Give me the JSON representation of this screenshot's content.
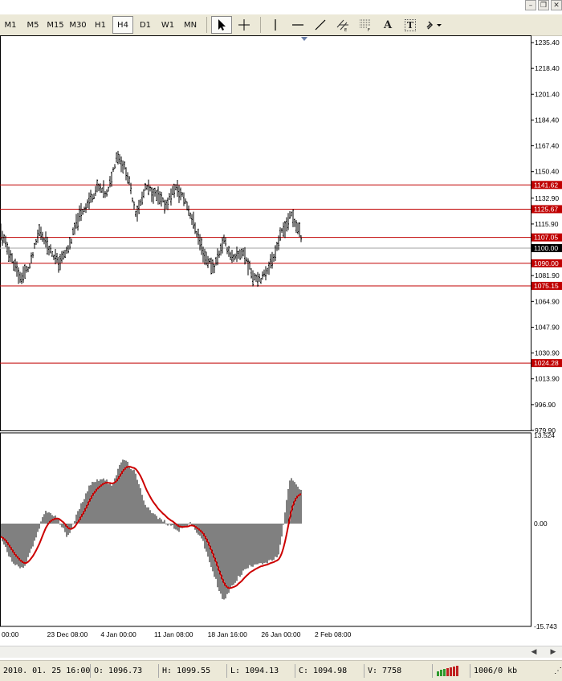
{
  "timeframes": [
    {
      "label": "M1",
      "active": false
    },
    {
      "label": "M5",
      "active": false
    },
    {
      "label": "M15",
      "active": false
    },
    {
      "label": "M30",
      "active": false
    },
    {
      "label": "H1",
      "active": false
    },
    {
      "label": "H4",
      "active": true
    },
    {
      "label": "D1",
      "active": false
    },
    {
      "label": "W1",
      "active": false
    },
    {
      "label": "MN",
      "active": false
    }
  ],
  "tools": [
    {
      "name": "cursor-icon",
      "active": true
    },
    {
      "name": "crosshair-icon",
      "active": false
    },
    {
      "name": "vertical-line-icon",
      "active": false
    },
    {
      "name": "horizontal-line-icon",
      "active": false
    },
    {
      "name": "trendline-icon",
      "active": false
    },
    {
      "name": "equidistant-channel-icon",
      "active": false
    },
    {
      "name": "fibonacci-icon",
      "active": false
    },
    {
      "name": "text-icon",
      "active": false
    },
    {
      "name": "text-label-icon",
      "active": false
    },
    {
      "name": "arrows-dropdown-icon",
      "active": false
    }
  ],
  "text_tool_label": "A",
  "text_label_tool_label": "T",
  "window_controls": {
    "minimize": "–",
    "restore": "❐",
    "close": "✕"
  },
  "colors": {
    "price_line": "#c00000",
    "macd_signal": "#cc0000",
    "bars": "#000000",
    "current_price": "#a0a0a0"
  },
  "chart_data": {
    "type": "line",
    "price_axis": {
      "ticks": [
        "1235.40",
        "1218.40",
        "1201.40",
        "1184.40",
        "1167.40",
        "1150.40",
        "1132.90",
        "1115.90",
        "1098.90",
        "1081.90",
        "1064.90",
        "1047.90",
        "1030.90",
        "1013.90",
        "996.90",
        "979.90"
      ],
      "range": [
        979.9,
        1237.0
      ]
    },
    "current_price": {
      "label": "1100.00",
      "value": 1100.0
    },
    "horizontal_levels": [
      {
        "label": "1141.62",
        "value": 1141.62
      },
      {
        "label": "1125.67",
        "value": 1125.67
      },
      {
        "label": "1107.05",
        "value": 1107.05
      },
      {
        "label": "1090.00",
        "value": 1090.0
      },
      {
        "label": "1075.15",
        "value": 1075.15
      },
      {
        "label": "1024.28",
        "value": 1024.28
      }
    ],
    "price_keypoints": [
      1110,
      1095,
      1080,
      1088,
      1112,
      1100,
      1090,
      1100,
      1120,
      1130,
      1140,
      1135,
      1162,
      1150,
      1122,
      1140,
      1135,
      1128,
      1140,
      1132,
      1115,
      1095,
      1087,
      1105,
      1092,
      1098,
      1082,
      1080,
      1092,
      1110,
      1122,
      1108
    ],
    "macd_axis": {
      "ticks": [
        "13.524",
        "0.00",
        "-15.743"
      ],
      "range": [
        -15.743,
        13.524
      ]
    },
    "macd_keypoints": [
      -2,
      -6,
      -7,
      -3,
      2,
      1,
      -2,
      2,
      6,
      7,
      6,
      10,
      8,
      3,
      1,
      0,
      -1,
      0,
      -2,
      -7,
      -12,
      -9,
      -7,
      -6,
      -6,
      -5,
      7,
      5
    ],
    "time_labels": [
      "00:00",
      "23 Dec 08:00",
      "4 Jan 00:00",
      "11 Jan 08:00",
      "18 Jan 16:00",
      "26 Jan 00:00",
      "2 Feb 08:00"
    ]
  },
  "status": {
    "datetime": "2010. 01. 25 16:00",
    "open": "O: 1096.73",
    "high": "H: 1099.55",
    "low": "L: 1094.13",
    "close": "C: 1094.98",
    "volume": "V: 7758",
    "traffic": "1006/0 kb"
  }
}
